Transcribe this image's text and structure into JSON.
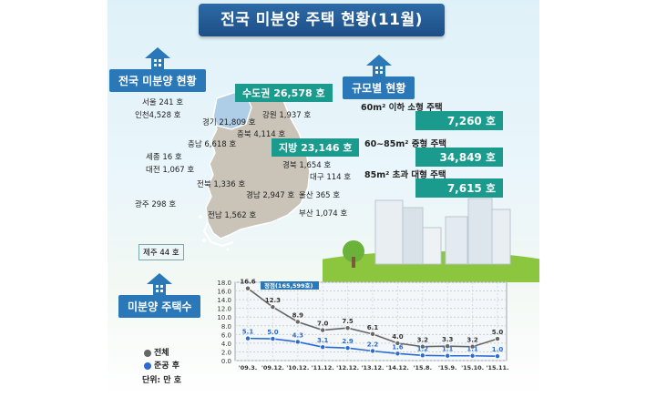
{
  "title": "전국 미분양 주택 현황(11월)",
  "national_section": {
    "heading": "전국 미분양 현황",
    "capital": "수도권 26,578 호",
    "regional": "지방 23,146 호",
    "regions": [
      {
        "name": "서울",
        "value": "241 호"
      },
      {
        "name": "인천",
        "value": "4,528 호"
      },
      {
        "name": "경기",
        "value": "21,809 호"
      },
      {
        "name": "강원",
        "value": "1,937 호"
      },
      {
        "name": "충북",
        "value": "4,114 호"
      },
      {
        "name": "충남",
        "value": "6,618 호"
      },
      {
        "name": "세종",
        "value": "16 호"
      },
      {
        "name": "대전",
        "value": "1,067 호"
      },
      {
        "name": "경북",
        "value": "1,654 호"
      },
      {
        "name": "대구",
        "value": "114 호"
      },
      {
        "name": "전북",
        "value": "1,336 호"
      },
      {
        "name": "경남",
        "value": "2,947 호"
      },
      {
        "name": "울산",
        "value": "365 호"
      },
      {
        "name": "광주",
        "value": "298 호"
      },
      {
        "name": "부산",
        "value": "1,074 호"
      },
      {
        "name": "전남",
        "value": "1,562 호"
      },
      {
        "name": "제주",
        "value": "44 호"
      }
    ]
  },
  "size_section": {
    "heading": "규모별 현황",
    "items": [
      {
        "label": "60m² 이하 소형 주택",
        "value": "7,260 호"
      },
      {
        "label": "60~85m² 중형 주택",
        "value": "34,849 호"
      },
      {
        "label": "85m² 초과 대형 주택",
        "value": "7,615 호"
      }
    ]
  },
  "count_section": {
    "heading": "미분양 주택수",
    "legend_total": "전체",
    "legend_completed": "준공 후",
    "unit": "단위: 만 호"
  },
  "colors": {
    "total": "#666666",
    "completed": "#2a6bd1",
    "accent_blue": "#2b78b8",
    "accent_green": "#1a9b8e"
  },
  "chart_data": {
    "type": "line",
    "categories": [
      "'09.3.",
      "'09.12.",
      "'10.12.",
      "'11.12.",
      "'12.12.",
      "'13.12.",
      "'14.12.",
      "'15.8.",
      "'15.9.",
      "'15.10.",
      "'15.11."
    ],
    "series": [
      {
        "name": "전체",
        "values": [
          16.6,
          12.3,
          8.9,
          7.0,
          7.5,
          6.1,
          4.0,
          3.2,
          3.3,
          3.2,
          5.0
        ]
      },
      {
        "name": "준공 후",
        "values": [
          5.1,
          5.0,
          4.3,
          3.1,
          2.9,
          2.2,
          1.6,
          1.2,
          1.1,
          1.1,
          1.0
        ]
      }
    ],
    "yticks": [
      "0.0",
      "2.0",
      "4.0",
      "6.0",
      "8.0",
      "10.0",
      "12.0",
      "14.0",
      "16.0",
      "18.0"
    ],
    "ylim": [
      0,
      18
    ],
    "grid": true,
    "annotation": "정점(165,599호)"
  }
}
